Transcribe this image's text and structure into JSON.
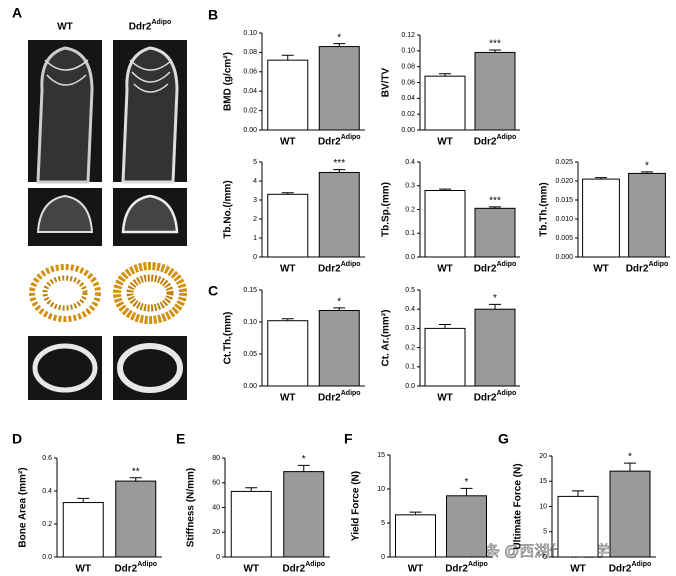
{
  "panel_a": {
    "label": "A",
    "columns": [
      "WT",
      "Ddr2"
    ],
    "column_superscripts": [
      null,
      "Adipo"
    ]
  },
  "watermark": "头条 @西湖代谢组学",
  "chart_data": [
    {
      "type": "bar",
      "panel": "B",
      "ylabel": "BMD (g/cm²)",
      "categories": [
        "WT",
        "Ddr2"
      ],
      "category_superscripts": [
        null,
        "Adipo"
      ],
      "values": [
        0.072,
        0.086
      ],
      "errors": [
        0.005,
        0.003
      ],
      "annotations": [
        null,
        "*"
      ],
      "colors": [
        "#ffffff",
        "#9a9a9a"
      ],
      "ylim": [
        0,
        0.1
      ],
      "yticks": [
        {
          "value": 0,
          "label": "0.00"
        },
        0.02,
        0.04,
        0.06,
        0.08,
        {
          "value": 0.1,
          "label": "0.10"
        }
      ]
    },
    {
      "type": "bar",
      "ylabel": "BV/TV",
      "categories": [
        "WT",
        "Ddr2"
      ],
      "category_superscripts": [
        null,
        "Adipo"
      ],
      "values": [
        0.068,
        0.098
      ],
      "errors": [
        0.003,
        0.003
      ],
      "annotations": [
        null,
        "***"
      ],
      "colors": [
        "#ffffff",
        "#9a9a9a"
      ],
      "ylim": [
        0,
        0.12
      ],
      "yticks": [
        {
          "value": 0,
          "label": "0.00"
        },
        0.02,
        0.04,
        0.06,
        0.08,
        {
          "value": 0.1,
          "label": "0.10"
        },
        0.12
      ]
    },
    {
      "type": "bar",
      "ylabel": "Tb.No.(/mm)",
      "categories": [
        "WT",
        "Ddr2"
      ],
      "category_superscripts": [
        null,
        "Adipo"
      ],
      "values": [
        3.3,
        4.45
      ],
      "errors": [
        0.08,
        0.15
      ],
      "annotations": [
        null,
        "***"
      ],
      "colors": [
        "#ffffff",
        "#9a9a9a"
      ],
      "ylim": [
        0,
        5
      ],
      "yticks": [
        0,
        1,
        2,
        3,
        4,
        5
      ]
    },
    {
      "type": "bar",
      "ylabel": "Tb.Sp.(mm)",
      "categories": [
        "WT",
        "Ddr2"
      ],
      "category_superscripts": [
        null,
        "Adipo"
      ],
      "values": [
        0.28,
        0.205
      ],
      "errors": [
        0.006,
        0.006
      ],
      "annotations": [
        null,
        "***"
      ],
      "colors": [
        "#ffffff",
        "#9a9a9a"
      ],
      "ylim": [
        0,
        0.4
      ],
      "yticks": [
        {
          "value": 0,
          "label": "0.0"
        },
        0.1,
        0.2,
        0.3,
        0.4
      ]
    },
    {
      "type": "bar",
      "ylabel": "Tb.Th.(mm)",
      "categories": [
        "WT",
        "Ddr2"
      ],
      "category_superscripts": [
        null,
        "Adipo"
      ],
      "values": [
        0.0205,
        0.022
      ],
      "errors": [
        0.0004,
        0.0004
      ],
      "annotations": [
        null,
        "*"
      ],
      "colors": [
        "#ffffff",
        "#9a9a9a"
      ],
      "ylim": [
        0,
        0.025
      ],
      "yticks": [
        {
          "value": 0,
          "label": "0.000"
        },
        0.005,
        {
          "value": 0.01,
          "label": "0.010"
        },
        0.015,
        {
          "value": 0.02,
          "label": "0.020"
        },
        0.025
      ]
    },
    {
      "type": "bar",
      "panel": "C",
      "ylabel": "Ct.Th.(mm)",
      "categories": [
        "WT",
        "Ddr2"
      ],
      "category_superscripts": [
        null,
        "Adipo"
      ],
      "values": [
        0.102,
        0.118
      ],
      "errors": [
        0.003,
        0.004
      ],
      "annotations": [
        null,
        "*"
      ],
      "colors": [
        "#ffffff",
        "#9a9a9a"
      ],
      "ylim": [
        0,
        0.15
      ],
      "yticks": [
        {
          "value": 0,
          "label": "0.00"
        },
        0.05,
        {
          "value": 0.1,
          "label": "0.10"
        },
        0.15
      ]
    },
    {
      "type": "bar",
      "ylabel": "Ct. Ar.(mm²)",
      "categories": [
        "WT",
        "Ddr2"
      ],
      "category_superscripts": [
        null,
        "Adipo"
      ],
      "values": [
        0.3,
        0.4
      ],
      "errors": [
        0.02,
        0.025
      ],
      "annotations": [
        null,
        "*"
      ],
      "colors": [
        "#ffffff",
        "#9a9a9a"
      ],
      "ylim": [
        0,
        0.5
      ],
      "yticks": [
        {
          "value": 0,
          "label": "0.0"
        },
        0.1,
        0.2,
        0.3,
        0.4,
        0.5
      ]
    },
    {
      "type": "bar",
      "panel": "D",
      "ylabel": "Bone Area (mm²)",
      "categories": [
        "WT",
        "Ddr2"
      ],
      "category_superscripts": [
        null,
        "Adipo"
      ],
      "values": [
        0.33,
        0.46
      ],
      "errors": [
        0.025,
        0.02
      ],
      "annotations": [
        null,
        "**"
      ],
      "colors": [
        "#ffffff",
        "#9a9a9a"
      ],
      "ylim": [
        0,
        0.6
      ],
      "yticks": [
        {
          "value": 0,
          "label": "0.0"
        },
        0.2,
        0.4,
        0.6
      ]
    },
    {
      "type": "bar",
      "panel": "E",
      "ylabel": "Stiffness (N/mm)",
      "categories": [
        "WT",
        "Ddr2"
      ],
      "category_superscripts": [
        null,
        "Adipo"
      ],
      "values": [
        53,
        69
      ],
      "errors": [
        3,
        5
      ],
      "annotations": [
        null,
        "*"
      ],
      "colors": [
        "#ffffff",
        "#9a9a9a"
      ],
      "ylim": [
        0,
        80
      ],
      "yticks": [
        0,
        20,
        40,
        60,
        80
      ]
    },
    {
      "type": "bar",
      "panel": "F",
      "ylabel": "Yield Force (N)",
      "categories": [
        "WT",
        "Ddr2"
      ],
      "category_superscripts": [
        null,
        "Adipo"
      ],
      "values": [
        6.2,
        9
      ],
      "errors": [
        0.4,
        1.1
      ],
      "annotations": [
        null,
        "*"
      ],
      "colors": [
        "#ffffff",
        "#9a9a9a"
      ],
      "ylim": [
        0,
        15
      ],
      "yticks": [
        0,
        5,
        10,
        15
      ]
    },
    {
      "type": "bar",
      "panel": "G",
      "ylabel": "Ultimate Force (N)",
      "categories": [
        "WT",
        "Ddr2"
      ],
      "category_superscripts": [
        null,
        "Adipo"
      ],
      "values": [
        12,
        17
      ],
      "errors": [
        1.1,
        1.6
      ],
      "annotations": [
        null,
        "*"
      ],
      "colors": [
        "#ffffff",
        "#9a9a9a"
      ],
      "ylim": [
        0,
        20
      ],
      "yticks": [
        0,
        5,
        10,
        15,
        20
      ]
    }
  ]
}
